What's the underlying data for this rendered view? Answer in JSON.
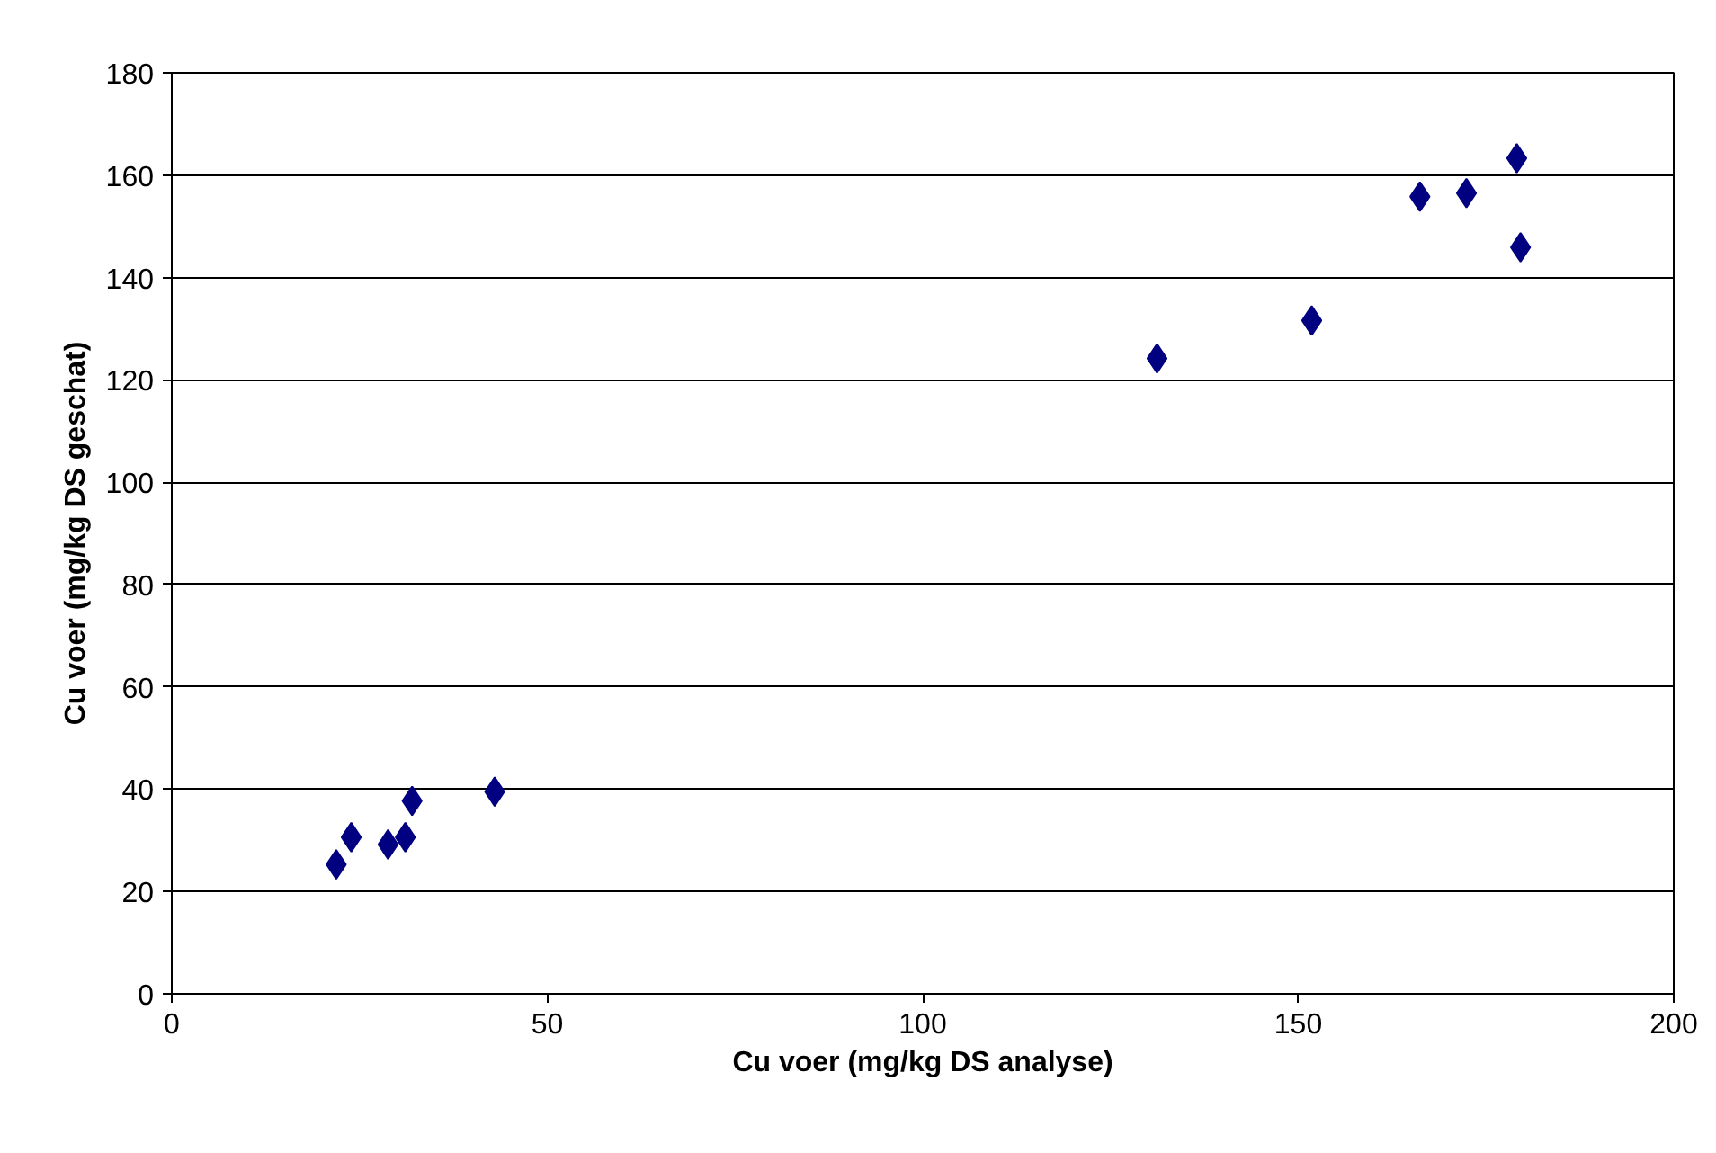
{
  "chart_data": {
    "type": "scatter",
    "xlabel": "Cu voer (mg/kg DS analyse)",
    "ylabel": "Cu voer (mg/kg DS geschat)",
    "x": [
      21.9,
      23.9,
      28.8,
      31.1,
      32.0,
      43.0,
      131.2,
      151.8,
      166.2,
      172.4,
      179.1,
      179.6
    ],
    "series": [
      {
        "color": "#000080",
        "values": [
          25.3,
          30.6,
          29.2,
          30.6,
          37.7,
          39.5,
          124.2,
          131.6,
          155.8,
          156.5,
          163.3,
          145.9
        ]
      }
    ],
    "marker": "diamond",
    "xlim": [
      0,
      200
    ],
    "ylim": [
      0,
      180
    ],
    "xticks": [
      0,
      50,
      100,
      150,
      200
    ],
    "yticks": [
      0,
      20,
      40,
      60,
      80,
      100,
      120,
      140,
      160,
      180
    ],
    "grid": "y"
  }
}
